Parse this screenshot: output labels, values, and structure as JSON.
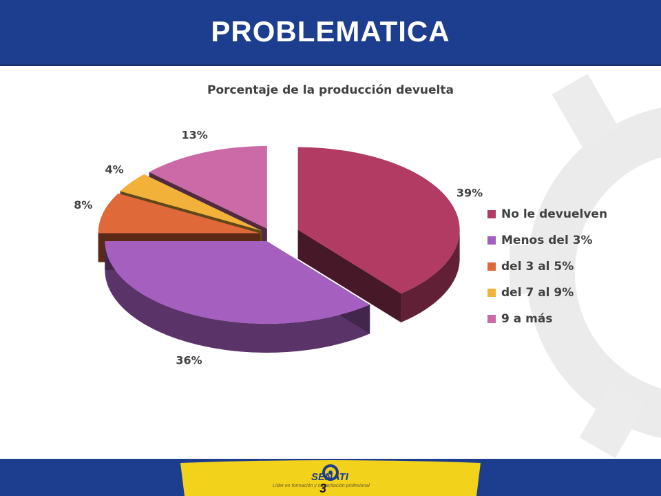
{
  "slide": {
    "title": "PROBLEMATICA",
    "page_number": "3"
  },
  "branding": {
    "logo_text": "SENATI",
    "tagline": "Líder en formación y capacitación profesional"
  },
  "chart_data": {
    "type": "pie",
    "title": "Porcentaje de la producción devuelta",
    "legend_position": "right",
    "categories": [
      "No le devuelven",
      "Menos del 3%",
      "del 3 al 5%",
      "del 7 al 9%",
      "9 a más"
    ],
    "values": [
      39,
      36,
      8,
      4,
      13
    ],
    "labels": [
      "39%",
      "36%",
      "8%",
      "4%",
      "13%"
    ],
    "colors": [
      "#b23b64",
      "#a45fbf",
      "#e0693a",
      "#f2b23a",
      "#cb6aa6"
    ],
    "exploded": true,
    "three_d": true
  },
  "colors": {
    "header_bg": "#1d3d8f",
    "footer_band": "#f3d21c"
  }
}
